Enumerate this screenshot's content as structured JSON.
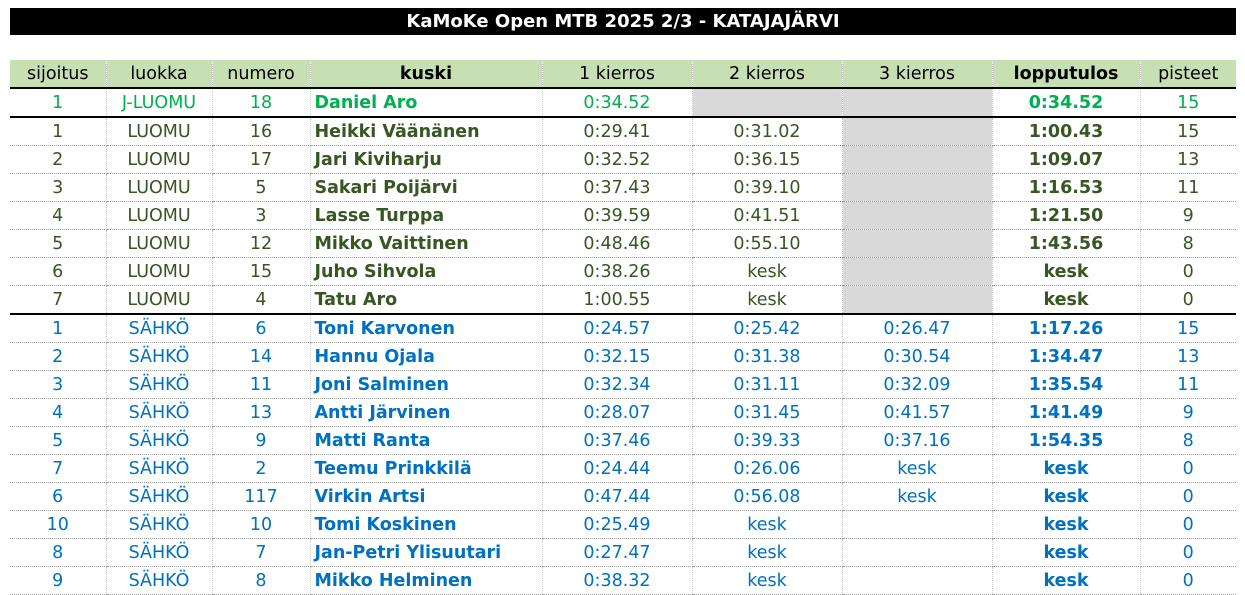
{
  "title": "KaMoKe Open MTB 2025 2/3 - KATAJAJÄRVI",
  "headers": [
    "sijoitus",
    "luokka",
    "numero",
    "kuski",
    "1 kierros",
    "2 kierros",
    "3 kierros",
    "lopputulos",
    "pisteet"
  ],
  "rows": [
    {
      "group": "g1",
      "sep": true,
      "cells": [
        "1",
        "J-LUOMU",
        "18",
        "Daniel Aro",
        "0:34.52",
        "",
        "",
        "0:34.52",
        "15"
      ],
      "grey": [
        5,
        6
      ]
    },
    {
      "group": "g2",
      "sep": true,
      "cells": [
        "1",
        "LUOMU",
        "16",
        "Heikki Väänänen",
        "0:29.41",
        "0:31.02",
        "",
        "1:00.43",
        "15"
      ],
      "grey": [
        6
      ]
    },
    {
      "group": "g2",
      "sep": false,
      "cells": [
        "2",
        "LUOMU",
        "17",
        "Jari Kiviharju",
        "0:32.52",
        "0:36.15",
        "",
        "1:09.07",
        "13"
      ],
      "grey": [
        6
      ]
    },
    {
      "group": "g2",
      "sep": false,
      "cells": [
        "3",
        "LUOMU",
        "5",
        "Sakari Poijärvi",
        "0:37.43",
        "0:39.10",
        "",
        "1:16.53",
        "11"
      ],
      "grey": [
        6
      ]
    },
    {
      "group": "g2",
      "sep": false,
      "cells": [
        "4",
        "LUOMU",
        "3",
        "Lasse Turppa",
        "0:39.59",
        "0:41.51",
        "",
        "1:21.50",
        "9"
      ],
      "grey": [
        6
      ]
    },
    {
      "group": "g2",
      "sep": false,
      "cells": [
        "5",
        "LUOMU",
        "12",
        "Mikko Vaittinen",
        "0:48.46",
        "0:55.10",
        "",
        "1:43.56",
        "8"
      ],
      "grey": [
        6
      ]
    },
    {
      "group": "g2",
      "sep": false,
      "cells": [
        "6",
        "LUOMU",
        "15",
        "Juho Sihvola",
        "0:38.26",
        "kesk",
        "",
        "kesk",
        "0"
      ],
      "grey": [
        6
      ]
    },
    {
      "group": "g2",
      "sep": false,
      "cells": [
        "7",
        "LUOMU",
        "4",
        "Tatu Aro",
        "1:00.55",
        "kesk",
        "",
        "kesk",
        "0"
      ],
      "grey": [
        6
      ]
    },
    {
      "group": "g3",
      "sep": true,
      "cells": [
        "1",
        "SÄHKÖ",
        "6",
        "Toni Karvonen",
        "0:24.57",
        "0:25.42",
        "0:26.47",
        "1:17.26",
        "15"
      ],
      "grey": []
    },
    {
      "group": "g3",
      "sep": false,
      "cells": [
        "2",
        "SÄHKÖ",
        "14",
        "Hannu Ojala",
        "0:32.15",
        "0:31.38",
        "0:30.54",
        "1:34.47",
        "13"
      ],
      "grey": []
    },
    {
      "group": "g3",
      "sep": false,
      "cells": [
        "3",
        "SÄHKÖ",
        "11",
        "Joni Salminen",
        "0:32.34",
        "0:31.11",
        "0:32.09",
        "1:35.54",
        "11"
      ],
      "grey": []
    },
    {
      "group": "g3",
      "sep": false,
      "cells": [
        "4",
        "SÄHKÖ",
        "13",
        "Antti Järvinen",
        "0:28.07",
        "0:31.45",
        "0:41.57",
        "1:41.49",
        "9"
      ],
      "grey": []
    },
    {
      "group": "g3",
      "sep": false,
      "cells": [
        "5",
        "SÄHKÖ",
        "9",
        "Matti Ranta",
        "0:37.46",
        "0:39.33",
        "0:37.16",
        "1:54.35",
        "8"
      ],
      "grey": []
    },
    {
      "group": "g3",
      "sep": false,
      "cells": [
        "7",
        "SÄHKÖ",
        "2",
        "Teemu Prinkkilä",
        "0:24.44",
        "0:26.06",
        "kesk",
        "kesk",
        "0"
      ],
      "grey": []
    },
    {
      "group": "g3",
      "sep": false,
      "cells": [
        "6",
        "SÄHKÖ",
        "117",
        "Virkin Artsi",
        "0:47.44",
        "0:56.08",
        "kesk",
        "kesk",
        "0"
      ],
      "grey": []
    },
    {
      "group": "g3",
      "sep": false,
      "cells": [
        "10",
        "SÄHKÖ",
        "10",
        "Tomi Koskinen",
        "0:25.49",
        "kesk",
        "",
        "kesk",
        "0"
      ],
      "grey": []
    },
    {
      "group": "g3",
      "sep": false,
      "cells": [
        "8",
        "SÄHKÖ",
        "7",
        "Jan-Petri Ylisuutari",
        "0:27.47",
        "kesk",
        "",
        "kesk",
        "0"
      ],
      "grey": []
    },
    {
      "group": "g3",
      "sep": false,
      "cells": [
        "9",
        "SÄHKÖ",
        "8",
        "Mikko Helminen",
        "0:38.32",
        "kesk",
        "",
        "kesk",
        "0"
      ],
      "grey": []
    }
  ],
  "colors": {
    "header_bg": "#c6e0b4",
    "j_luomu": "#00b050",
    "luomu": "#375623",
    "sahko": "#0070c0",
    "grey_cell": "#d9d9d9"
  }
}
